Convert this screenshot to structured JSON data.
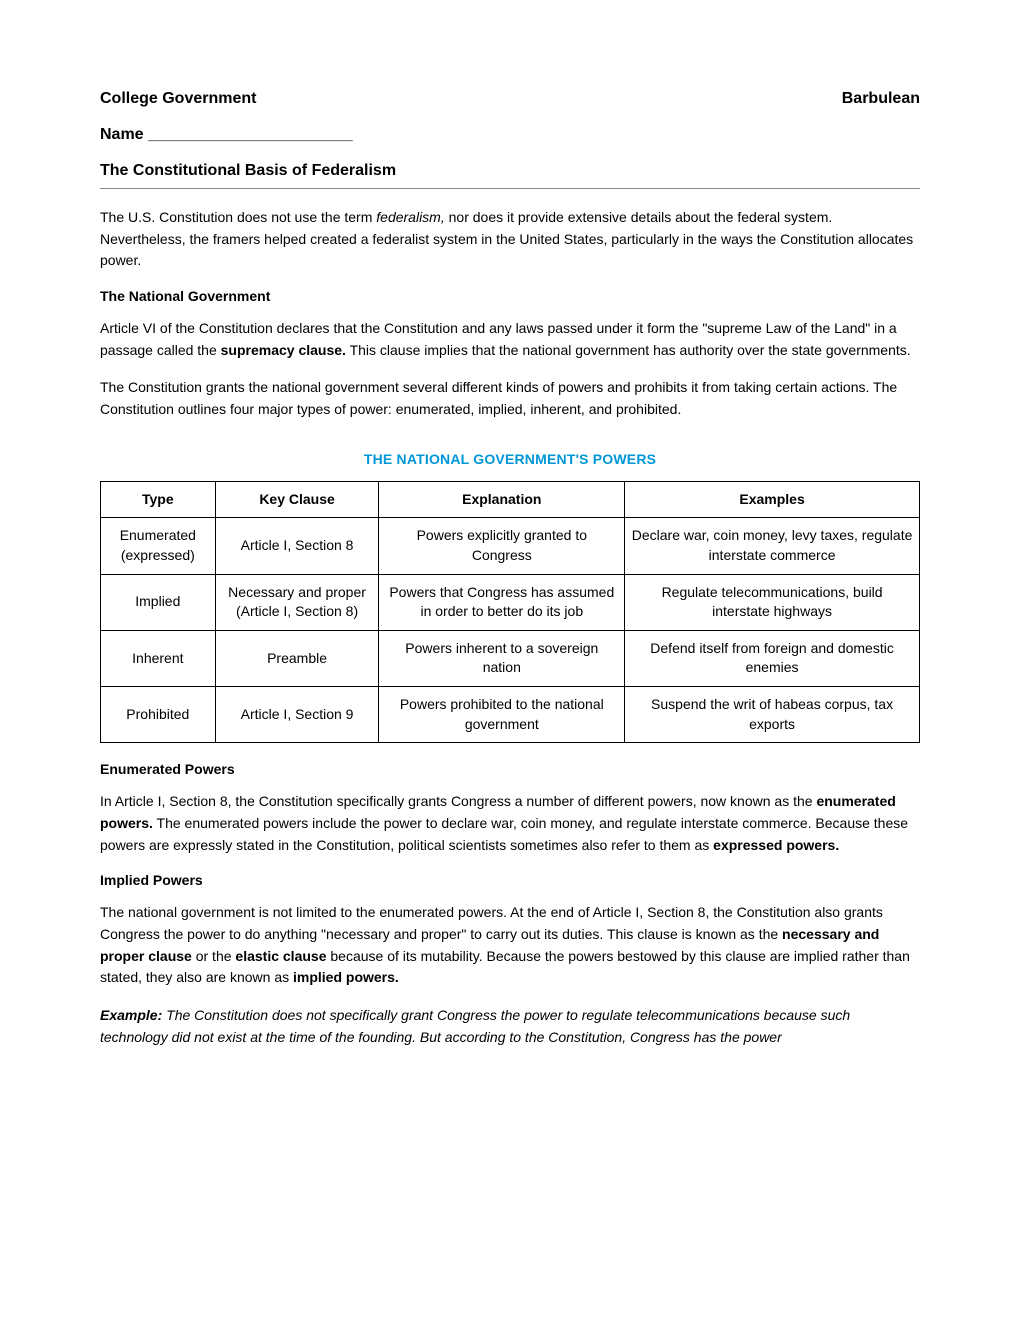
{
  "header": {
    "left": "College Government",
    "right": "Barbulean"
  },
  "name_line": "Name   _______________________",
  "title": "The Constitutional Basis of Federalism",
  "intro": {
    "pre": "The U.S. Constitution does not use the term ",
    "em": "federalism,",
    "post": " nor does it provide extensive details about the federal system. Nevertheless, the framers helped created a federalist system in the United States, particularly in the ways the Constitution allocates power."
  },
  "national_gov_heading": "The National Government",
  "national_gov_p1": {
    "pre": "Article VI of the Constitution declares that the Constitution and any laws passed under it form the \"supreme Law of the Land\" in a passage called the ",
    "bold": "supremacy clause.",
    "post": " This clause implies that the national government has authority over the state governments."
  },
  "national_gov_p2": "The Constitution grants the national government several different kinds of powers and prohibits it from taking certain actions. The Constitution outlines four major types of power: enumerated, implied, inherent, and prohibited.",
  "table": {
    "title": "THE NATIONAL GOVERNMENT'S POWERS",
    "title_color": "#0097d6",
    "headers": [
      "Type",
      "Key Clause",
      "Explanation",
      "Examples"
    ],
    "rows": [
      [
        "Enumerated (expressed)",
        "Article I, Section 8",
        "Powers explicitly granted to Congress",
        "Declare war, coin money, levy taxes, regulate interstate commerce"
      ],
      [
        "Implied",
        "Necessary and proper (Article I, Section 8)",
        "Powers that Congress has assumed in order to better do its job",
        "Regulate telecommunications, build interstate highways"
      ],
      [
        "Inherent",
        "Preamble",
        "Powers inherent to a sovereign nation",
        "Defend itself from foreign and domestic enemies"
      ],
      [
        "Prohibited",
        "Article I, Section 9",
        "Powers prohibited to the national government",
        "Suspend the writ of habeas corpus, tax exports"
      ]
    ]
  },
  "enum_heading": "Enumerated Powers",
  "enum_para": {
    "pre": "In Article I, Section 8, the Constitution specifically grants Congress a number of different powers, now known as the ",
    "bold1": "enumerated powers.",
    "mid": " The enumerated powers include the power to declare war, coin money, and regulate interstate commerce. Because these powers are expressly stated in the Constitution, political scientists sometimes also refer to them as ",
    "bold2": "expressed powers."
  },
  "implied_heading": "Implied Powers",
  "implied_para": {
    "pre": "The national government is not limited to the enumerated powers. At the end of Article I, Section 8, the Constitution also grants Congress the power to do anything \"necessary and proper\" to carry out its duties. This clause is known as the ",
    "bold1": "necessary and proper clause",
    "mid1": " or the ",
    "bold2": "elastic clause",
    "mid2": " because of its mutability. Because the powers bestowed by this clause are implied rather than stated, they also are known as ",
    "bold3": "implied powers."
  },
  "example_para": {
    "label": "Example:",
    "text": " The Constitution does not specifically grant Congress the power to regulate telecommunications because such technology did not exist at the time of the founding. But according to the Constitution, Congress has the power"
  }
}
